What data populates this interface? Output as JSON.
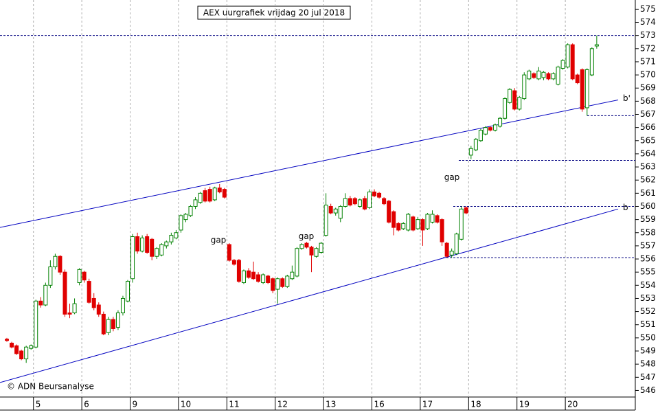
{
  "chart_data": {
    "type": "candlestick",
    "title": "AEX uurgrafiek vrijdag 20 jul 2018",
    "source": "© ADN Beursanalyse",
    "up_color": "#008000",
    "down_color": "#e00000",
    "grid": true,
    "ylim": [
      545.5,
      575.7
    ],
    "yticks": [
      546,
      547,
      548,
      549,
      550,
      551,
      552,
      553,
      554,
      555,
      556,
      557,
      558,
      559,
      560,
      561,
      562,
      563,
      564,
      565,
      566,
      567,
      568,
      569,
      570,
      571,
      572,
      573,
      574,
      575
    ],
    "categories": [
      null,
      null,
      null,
      null,
      null,
      null,
      "5",
      null,
      null,
      null,
      null,
      null,
      null,
      null,
      null,
      null,
      "6",
      null,
      null,
      null,
      null,
      null,
      null,
      null,
      null,
      null,
      "9",
      null,
      null,
      null,
      null,
      null,
      null,
      null,
      null,
      null,
      "10",
      null,
      null,
      null,
      null,
      null,
      null,
      null,
      null,
      null,
      "11",
      null,
      null,
      null,
      null,
      null,
      null,
      null,
      null,
      null,
      "12",
      null,
      null,
      null,
      null,
      null,
      null,
      null,
      null,
      null,
      "13",
      null,
      null,
      null,
      null,
      null,
      null,
      null,
      null,
      null,
      "16",
      null,
      null,
      null,
      null,
      null,
      null,
      null,
      null,
      null,
      "17",
      null,
      null,
      null,
      null,
      null,
      null,
      null,
      null,
      null,
      "18",
      null,
      null,
      null,
      null,
      null,
      null,
      null,
      null,
      null,
      "19",
      null,
      null,
      null,
      null,
      null,
      null,
      null,
      null,
      null,
      "20",
      null,
      null,
      null,
      null,
      null,
      null
    ],
    "candles": [
      [
        549.9,
        550.0,
        549.7,
        549.8
      ],
      [
        549.6,
        549.7,
        549.2,
        549.3
      ],
      [
        549.4,
        549.5,
        548.7,
        548.8
      ],
      [
        549.0,
        549.1,
        548.3,
        548.4
      ],
      [
        548.4,
        549.4,
        548.1,
        549.3
      ],
      [
        549.2,
        549.5,
        549.1,
        549.4
      ],
      [
        549.3,
        552.9,
        549.2,
        552.8
      ],
      [
        552.8,
        553.1,
        552.3,
        552.5
      ],
      [
        552.5,
        554.2,
        552.4,
        554.0
      ],
      [
        554.0,
        555.9,
        553.8,
        555.4
      ],
      [
        555.4,
        556.4,
        555.2,
        556.2
      ],
      [
        556.2,
        556.3,
        554.8,
        555.0
      ],
      [
        555.0,
        555.2,
        551.6,
        551.8
      ],
      [
        551.9,
        552.6,
        551.5,
        551.8
      ],
      [
        551.9,
        553.0,
        551.8,
        552.6
      ],
      [
        554.2,
        555.3,
        554.0,
        555.2
      ],
      [
        555.0,
        555.1,
        554.2,
        554.4
      ],
      [
        554.3,
        554.5,
        552.6,
        552.7
      ],
      [
        553.0,
        553.4,
        552.1,
        552.3
      ],
      [
        552.5,
        552.7,
        551.6,
        551.8
      ],
      [
        551.8,
        552.0,
        550.2,
        550.3
      ],
      [
        550.4,
        551.6,
        550.2,
        551.4
      ],
      [
        551.4,
        551.6,
        550.5,
        550.7
      ],
      [
        550.8,
        552.1,
        550.6,
        551.9
      ],
      [
        551.9,
        553.2,
        551.7,
        553.0
      ],
      [
        552.8,
        554.4,
        552.7,
        554.3
      ],
      [
        554.5,
        557.9,
        554.2,
        557.7
      ],
      [
        557.7,
        558.0,
        556.4,
        556.6
      ],
      [
        556.6,
        557.8,
        556.5,
        557.6
      ],
      [
        557.7,
        557.9,
        556.4,
        556.5
      ],
      [
        557.5,
        557.6,
        555.9,
        556.2
      ],
      [
        556.2,
        556.9,
        556.0,
        556.8
      ],
      [
        556.3,
        557.2,
        556.2,
        557.1
      ],
      [
        557.0,
        557.4,
        556.8,
        557.3
      ],
      [
        557.3,
        558.0,
        557.1,
        557.8
      ],
      [
        557.6,
        558.2,
        557.5,
        558.0
      ],
      [
        558.2,
        559.4,
        558.0,
        559.3
      ],
      [
        559.0,
        559.5,
        558.8,
        559.4
      ],
      [
        559.3,
        560.1,
        559.2,
        560.0
      ],
      [
        560.0,
        560.7,
        559.8,
        560.5
      ],
      [
        560.3,
        561.1,
        560.2,
        561.0
      ],
      [
        561.2,
        561.4,
        560.3,
        560.4
      ],
      [
        561.3,
        561.5,
        560.3,
        560.4
      ],
      [
        560.5,
        561.5,
        560.4,
        561.4
      ],
      [
        561.4,
        561.7,
        561.0,
        561.1
      ],
      [
        561.3,
        561.4,
        560.6,
        560.7
      ],
      [
        557.1,
        557.2,
        555.8,
        555.9
      ],
      [
        555.9,
        556.0,
        555.5,
        555.6
      ],
      [
        555.9,
        556.0,
        554.2,
        554.3
      ],
      [
        554.2,
        555.2,
        554.1,
        555.1
      ],
      [
        555.1,
        555.3,
        554.5,
        554.6
      ],
      [
        555.0,
        555.8,
        554.4,
        554.5
      ],
      [
        554.8,
        555.0,
        554.2,
        554.3
      ],
      [
        554.2,
        554.9,
        554.1,
        554.8
      ],
      [
        554.7,
        554.8,
        554.1,
        554.2
      ],
      [
        554.5,
        554.6,
        553.4,
        553.6
      ],
      [
        553.7,
        554.6,
        552.6,
        554.5
      ],
      [
        554.5,
        554.6,
        553.8,
        553.9
      ],
      [
        553.9,
        554.8,
        553.8,
        554.7
      ],
      [
        554.5,
        555.5,
        554.4,
        555.0
      ],
      [
        554.7,
        556.9,
        554.6,
        556.8
      ],
      [
        556.8,
        557.2,
        556.7,
        557.1
      ],
      [
        557.2,
        557.3,
        556.8,
        556.9
      ],
      [
        556.9,
        557.0,
        555.0,
        556.3
      ],
      [
        556.2,
        556.9,
        556.1,
        556.8
      ],
      [
        556.5,
        557.3,
        556.4,
        557.2
      ],
      [
        557.8,
        561.0,
        557.7,
        560.1
      ],
      [
        560.0,
        560.2,
        559.4,
        559.5
      ],
      [
        559.5,
        559.9,
        559.3,
        559.8
      ],
      [
        559.1,
        560.1,
        558.8,
        560.0
      ],
      [
        560.0,
        561.0,
        559.9,
        560.6
      ],
      [
        560.6,
        560.8,
        560.0,
        560.1
      ],
      [
        560.6,
        560.7,
        560.1,
        560.2
      ],
      [
        560.0,
        560.6,
        559.9,
        560.5
      ],
      [
        560.6,
        560.8,
        559.7,
        559.8
      ],
      [
        559.9,
        561.3,
        559.8,
        561.1
      ],
      [
        561.1,
        561.3,
        560.7,
        560.8
      ],
      [
        561.0,
        561.1,
        560.6,
        560.7
      ],
      [
        560.6,
        560.7,
        560.1,
        560.2
      ],
      [
        560.4,
        560.5,
        558.7,
        558.8
      ],
      [
        559.6,
        559.7,
        557.8,
        558.4
      ],
      [
        558.7,
        558.8,
        558.1,
        558.2
      ],
      [
        558.3,
        558.8,
        558.2,
        558.7
      ],
      [
        558.2,
        559.5,
        558.1,
        559.4
      ],
      [
        559.2,
        559.3,
        558.1,
        558.2
      ],
      [
        558.3,
        559.2,
        558.2,
        559.0
      ],
      [
        559.0,
        559.1,
        557.0,
        558.2
      ],
      [
        558.3,
        559.5,
        558.2,
        559.4
      ],
      [
        558.8,
        559.7,
        558.7,
        559.4
      ],
      [
        559.3,
        559.4,
        558.7,
        558.8
      ],
      [
        559.0,
        559.1,
        557.0,
        557.3
      ],
      [
        557.2,
        557.3,
        556.1,
        556.2
      ],
      [
        556.3,
        556.8,
        556.1,
        556.6
      ],
      [
        556.4,
        558.0,
        556.3,
        557.9
      ],
      [
        557.5,
        560.0,
        557.4,
        559.8
      ],
      [
        559.9,
        560.0,
        559.4,
        559.5
      ],
      [
        563.9,
        564.6,
        563.6,
        564.4
      ],
      [
        564.3,
        565.2,
        564.2,
        565.1
      ],
      [
        565.0,
        565.9,
        564.9,
        565.8
      ],
      [
        565.5,
        566.1,
        565.4,
        566.0
      ],
      [
        566.0,
        566.1,
        565.7,
        565.8
      ],
      [
        565.8,
        566.3,
        565.7,
        566.2
      ],
      [
        566.1,
        566.8,
        566.0,
        566.7
      ],
      [
        566.7,
        568.3,
        566.6,
        568.2
      ],
      [
        567.9,
        569.0,
        567.8,
        568.9
      ],
      [
        568.8,
        569.0,
        567.3,
        567.4
      ],
      [
        567.4,
        568.4,
        567.3,
        568.3
      ],
      [
        568.2,
        570.2,
        568.1,
        570.0
      ],
      [
        569.7,
        570.4,
        569.6,
        570.3
      ],
      [
        570.1,
        570.2,
        569.7,
        569.8
      ],
      [
        569.7,
        570.6,
        569.6,
        570.3
      ],
      [
        569.8,
        570.3,
        569.6,
        570.2
      ],
      [
        570.1,
        570.2,
        569.6,
        569.7
      ],
      [
        569.7,
        570.2,
        569.6,
        570.1
      ],
      [
        569.3,
        570.7,
        569.2,
        570.6
      ],
      [
        570.5,
        571.2,
        570.4,
        571.1
      ],
      [
        570.6,
        572.4,
        570.5,
        572.3
      ],
      [
        572.3,
        572.4,
        569.6,
        569.7
      ],
      [
        570.0,
        570.1,
        569.3,
        569.4
      ],
      [
        570.4,
        570.5,
        567.2,
        567.4
      ],
      [
        567.5,
        570.5,
        566.9,
        570.4
      ],
      [
        570.0,
        572.1,
        569.9,
        572.0
      ],
      [
        572.2,
        573.0,
        572.0,
        572.3
      ]
    ],
    "trendlines": [
      {
        "label": "b'",
        "color": "#0000c0",
        "values": [
          558.4,
          568.1
        ]
      },
      {
        "label": "b",
        "color": "#0000c0",
        "values": [
          546.6,
          559.8
        ]
      }
    ],
    "levels": [
      573.0,
      566.9,
      563.5,
      560.0,
      556.1
    ],
    "annotations": [
      {
        "text": "gap",
        "value": 557.4
      },
      {
        "text": "gap",
        "value": 557.7
      },
      {
        "text": "gap",
        "value": 562.2
      }
    ]
  }
}
